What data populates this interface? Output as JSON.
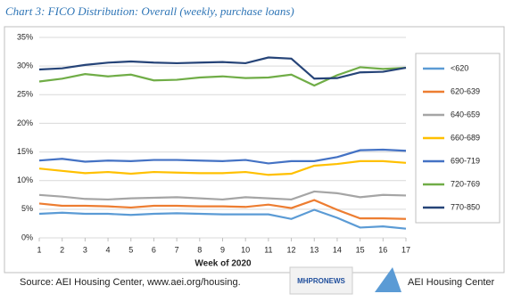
{
  "chart_data": {
    "type": "line",
    "title": "Chart 3: FICO Distribution: Overall (weekly, purchase loans)",
    "x_label": "Week of 2020",
    "source": "Source: AEI Housing Center, www.aei.org/housing.",
    "watermark": "MHPRONEWS",
    "logo_text": "AEI Housing Center",
    "x": [
      1,
      2,
      3,
      4,
      5,
      6,
      7,
      8,
      9,
      10,
      11,
      12,
      13,
      14,
      15,
      16,
      17
    ],
    "xlim": [
      1,
      17
    ],
    "xticks": [
      1,
      2,
      3,
      4,
      5,
      6,
      7,
      8,
      9,
      10,
      11,
      12,
      13,
      14,
      15,
      16,
      17
    ],
    "ylim": [
      0,
      35
    ],
    "yticks": [
      {
        "value": 0,
        "label": "0%"
      },
      {
        "value": 5,
        "label": "5%"
      },
      {
        "value": 10,
        "label": "10%"
      },
      {
        "value": 15,
        "label": "15%"
      },
      {
        "value": 20,
        "label": "20%"
      },
      {
        "value": 25,
        "label": "25%"
      },
      {
        "value": 30,
        "label": "30%"
      },
      {
        "value": 35,
        "label": "35%"
      }
    ],
    "grid": true,
    "legend": "right",
    "series": [
      {
        "name": "<620",
        "color": "#5b9bd5",
        "values": [
          4.2,
          4.4,
          4.2,
          4.2,
          4.0,
          4.2,
          4.3,
          4.2,
          4.1,
          4.1,
          4.1,
          3.3,
          4.9,
          3.5,
          1.8,
          2.0,
          1.6
        ]
      },
      {
        "name": "620-639",
        "color": "#ed7d31",
        "values": [
          6.0,
          5.6,
          5.6,
          5.5,
          5.3,
          5.6,
          5.6,
          5.5,
          5.5,
          5.4,
          5.8,
          5.2,
          6.6,
          4.9,
          3.4,
          3.4,
          3.3
        ]
      },
      {
        "name": "640-659",
        "color": "#a5a5a5",
        "values": [
          7.5,
          7.2,
          6.8,
          6.7,
          6.9,
          7.0,
          7.1,
          6.9,
          6.7,
          7.1,
          6.9,
          6.7,
          8.1,
          7.8,
          7.1,
          7.5,
          7.4
        ]
      },
      {
        "name": "660-689",
        "color": "#ffc000",
        "values": [
          12.1,
          11.7,
          11.3,
          11.5,
          11.2,
          11.5,
          11.4,
          11.3,
          11.3,
          11.5,
          11.0,
          11.2,
          12.6,
          12.9,
          13.4,
          13.4,
          13.1
        ]
      },
      {
        "name": "690-719",
        "color": "#4472c4",
        "values": [
          13.5,
          13.8,
          13.3,
          13.5,
          13.4,
          13.6,
          13.6,
          13.5,
          13.4,
          13.6,
          13.0,
          13.4,
          13.4,
          14.1,
          15.3,
          15.4,
          15.2
        ]
      },
      {
        "name": "720-769",
        "color": "#70ad47",
        "values": [
          27.3,
          27.8,
          28.6,
          28.2,
          28.5,
          27.5,
          27.6,
          28.0,
          28.2,
          27.9,
          28.0,
          28.5,
          26.6,
          28.4,
          29.8,
          29.5,
          29.7
        ]
      },
      {
        "name": "770-850",
        "color": "#264478",
        "values": [
          29.4,
          29.6,
          30.2,
          30.6,
          30.8,
          30.6,
          30.5,
          30.6,
          30.7,
          30.5,
          31.5,
          31.3,
          27.8,
          27.9,
          28.9,
          29.0,
          29.7
        ]
      }
    ]
  }
}
